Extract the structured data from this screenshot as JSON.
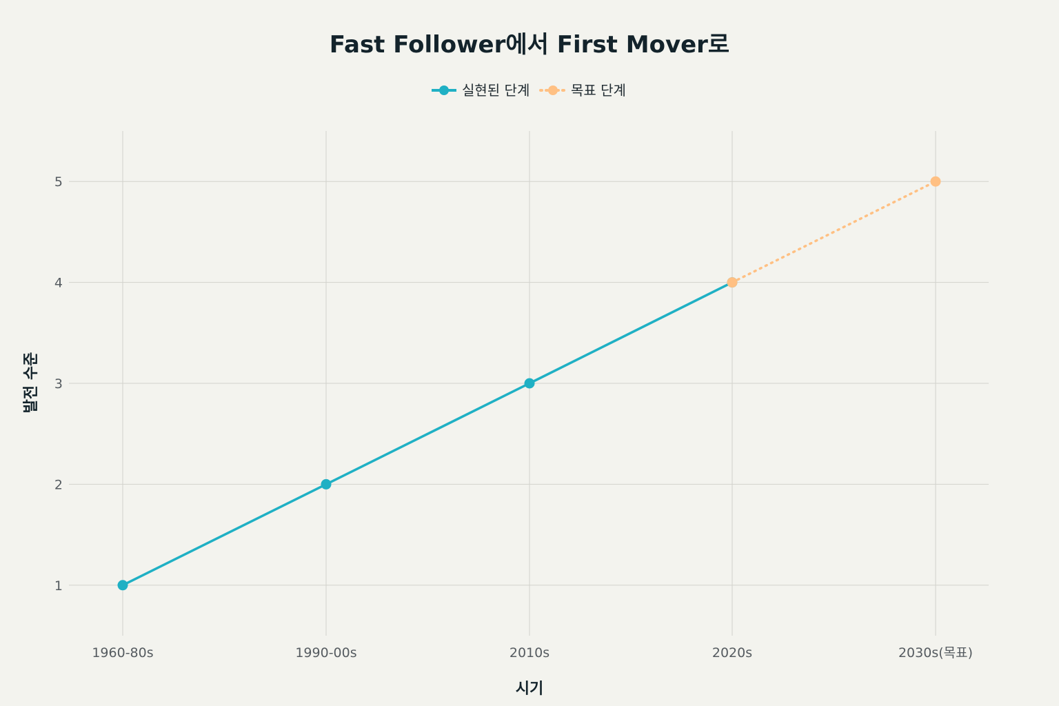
{
  "colors": {
    "background": "#f3f3ee",
    "realized": "#1fb0c4",
    "target": "#ffc083",
    "grid": "#d2d2cc"
  },
  "chart_data": {
    "type": "line",
    "title": "Fast Follower에서 First Mover로",
    "xlabel": "시기",
    "ylabel": "발전 수준",
    "categories": [
      "1960-80s",
      "1990-00s",
      "2010s",
      "2020s",
      "2030s(목표)"
    ],
    "ylim": [
      0.5,
      5.5
    ],
    "yticks": [
      1,
      2,
      3,
      4,
      5
    ],
    "grid": true,
    "legend_position": "top-center",
    "series": [
      {
        "name": "실현된 단계",
        "style": "solid",
        "color": "#1fb0c4",
        "points": [
          {
            "x": "1960-80s",
            "y": 1
          },
          {
            "x": "1990-00s",
            "y": 2
          },
          {
            "x": "2010s",
            "y": 3
          },
          {
            "x": "2020s",
            "y": 4
          }
        ]
      },
      {
        "name": "목표 단계",
        "style": "dotted",
        "color": "#ffc083",
        "points": [
          {
            "x": "2020s",
            "y": 4
          },
          {
            "x": "2030s(목표)",
            "y": 5
          }
        ]
      }
    ]
  }
}
